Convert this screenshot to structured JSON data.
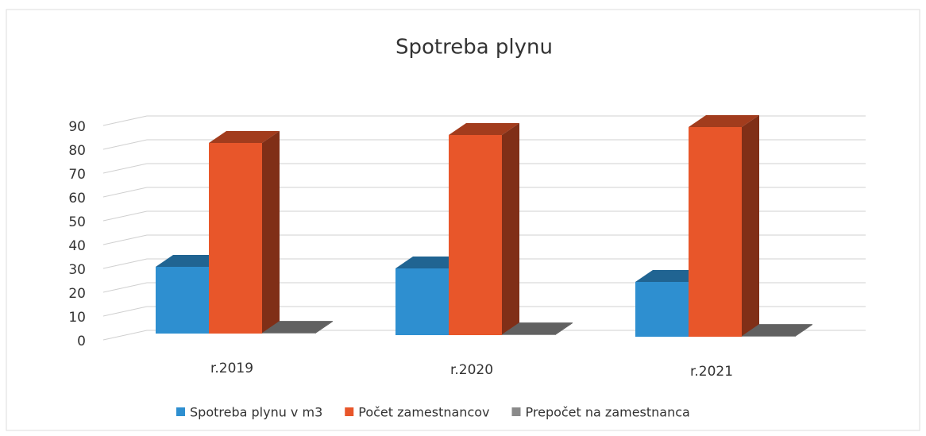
{
  "chart_data": {
    "type": "bar3d",
    "title": "Spotreba plynu",
    "categories": [
      "r.2019",
      "r.2020",
      "r.2021"
    ],
    "series": [
      {
        "name": "Spotreba plynu v m3",
        "color": "#2e8fd0",
        "values": [
          28,
          28,
          23
        ]
      },
      {
        "name": "Počet zamestnancov",
        "color": "#e8562a",
        "values": [
          80,
          84,
          88
        ]
      },
      {
        "name": "Prepočet na zamestnanca",
        "color": "#8a8a8a",
        "values": [
          0.3,
          0.3,
          0.3
        ]
      }
    ],
    "ylim": [
      0,
      90
    ],
    "yticks": [
      0,
      10,
      20,
      30,
      40,
      50,
      60,
      70,
      80,
      90
    ],
    "grid": true,
    "legend": "bottom"
  }
}
